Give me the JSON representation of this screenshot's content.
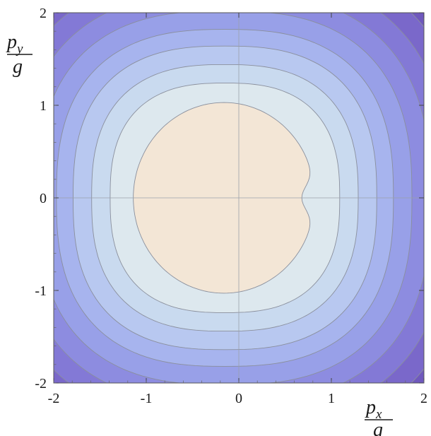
{
  "chart_data": {
    "type": "contour",
    "x_ticks": [
      "-2",
      "-1",
      "0",
      "1",
      "2"
    ],
    "y_ticks": [
      "2",
      "1",
      "0",
      "-1",
      "-2"
    ],
    "xlim": [
      -2,
      2
    ],
    "ylim": [
      -2,
      2
    ],
    "xlabel": {
      "var": "p",
      "sub": "x",
      "den": "g"
    },
    "ylabel": {
      "var": "p",
      "sub": "y",
      "den": "g"
    },
    "grid": "axes-only",
    "colors": {
      "innermost": "#f3e6d6",
      "levels": [
        "#dde8ee",
        "#c9daef",
        "#b8c8f0",
        "#a7b4ee",
        "#98a0e8",
        "#8d8ce0",
        "#8379d6",
        "#7a68ca",
        "#6f58bd"
      ],
      "contour_line": "#8a8f9c"
    },
    "contour_radii": [
      1.03,
      1.24,
      1.44,
      1.64,
      1.82,
      2.02,
      2.22,
      2.42,
      2.62
    ],
    "inner_notch": {
      "x": 0.7,
      "y": 0.0
    }
  }
}
